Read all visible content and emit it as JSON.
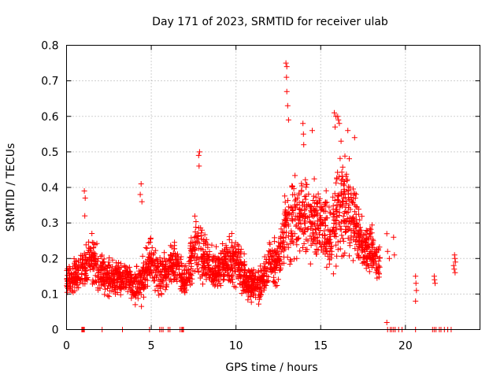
{
  "chart_data": {
    "type": "scatter",
    "title": "Day 171 of 2023, SRMTID for receiver ulab",
    "xlabel": "GPS time / hours",
    "ylabel": "SRMTID / TECUs",
    "xlim": [
      0,
      24.4
    ],
    "ylim": [
      0,
      0.8
    ],
    "xticks": [
      0,
      5,
      10,
      15,
      20
    ],
    "yticks": [
      0,
      0.1,
      0.2,
      0.3,
      0.4,
      0.5,
      0.6,
      0.7,
      0.8
    ],
    "xtick_labels": [
      "0",
      "5",
      "10",
      "15",
      "20"
    ],
    "ytick_labels": [
      "0",
      "0.1",
      "0.2",
      "0.3",
      "0.4",
      "0.5",
      "0.6",
      "0.7",
      "0.8"
    ],
    "grid": true,
    "marker": "+",
    "color": "#ff0000",
    "series": [
      {
        "name": "SRMTID",
        "profile": {
          "hours": [
            0.0,
            0.5,
            1.0,
            1.5,
            2.0,
            2.5,
            3.0,
            3.5,
            4.0,
            4.5,
            5.0,
            5.5,
            6.0,
            6.5,
            7.0,
            7.5,
            8.0,
            8.5,
            9.0,
            9.5,
            10.0,
            10.5,
            11.0,
            11.5,
            12.0,
            12.5,
            13.0,
            13.5,
            14.0,
            14.5,
            15.0,
            15.5,
            16.0,
            16.5,
            17.0,
            17.5,
            18.0,
            18.5
          ],
          "median": [
            0.14,
            0.15,
            0.17,
            0.2,
            0.16,
            0.15,
            0.14,
            0.15,
            0.12,
            0.14,
            0.19,
            0.15,
            0.17,
            0.18,
            0.13,
            0.22,
            0.21,
            0.17,
            0.17,
            0.19,
            0.2,
            0.15,
            0.12,
            0.13,
            0.18,
            0.2,
            0.3,
            0.31,
            0.32,
            0.31,
            0.3,
            0.27,
            0.33,
            0.35,
            0.31,
            0.23,
            0.22,
            0.18
          ],
          "spread": [
            0.04,
            0.04,
            0.06,
            0.06,
            0.05,
            0.05,
            0.04,
            0.04,
            0.04,
            0.06,
            0.06,
            0.05,
            0.05,
            0.05,
            0.04,
            0.08,
            0.07,
            0.05,
            0.05,
            0.05,
            0.06,
            0.05,
            0.04,
            0.04,
            0.06,
            0.07,
            0.1,
            0.1,
            0.1,
            0.1,
            0.09,
            0.09,
            0.12,
            0.12,
            0.1,
            0.07,
            0.06,
            0.05
          ]
        },
        "point_count": 2200,
        "spikes": [
          {
            "x": 1.05,
            "y": 0.39
          },
          {
            "x": 1.1,
            "y": 0.37
          },
          {
            "x": 1.08,
            "y": 0.32
          },
          {
            "x": 4.4,
            "y": 0.41
          },
          {
            "x": 4.35,
            "y": 0.38
          },
          {
            "x": 4.45,
            "y": 0.36
          },
          {
            "x": 7.8,
            "y": 0.49
          },
          {
            "x": 7.85,
            "y": 0.5
          },
          {
            "x": 7.82,
            "y": 0.46
          },
          {
            "x": 12.95,
            "y": 0.75
          },
          {
            "x": 13.0,
            "y": 0.74
          },
          {
            "x": 12.98,
            "y": 0.71
          },
          {
            "x": 13.0,
            "y": 0.67
          },
          {
            "x": 13.05,
            "y": 0.63
          },
          {
            "x": 13.1,
            "y": 0.59
          },
          {
            "x": 13.95,
            "y": 0.58
          },
          {
            "x": 13.98,
            "y": 0.55
          },
          {
            "x": 14.0,
            "y": 0.52
          },
          {
            "x": 14.5,
            "y": 0.56
          },
          {
            "x": 15.8,
            "y": 0.61
          },
          {
            "x": 15.9,
            "y": 0.6
          },
          {
            "x": 16.0,
            "y": 0.6
          },
          {
            "x": 16.05,
            "y": 0.59
          },
          {
            "x": 16.1,
            "y": 0.58
          },
          {
            "x": 15.85,
            "y": 0.57
          },
          {
            "x": 16.6,
            "y": 0.56
          },
          {
            "x": 16.2,
            "y": 0.53
          },
          {
            "x": 17.0,
            "y": 0.54
          },
          {
            "x": 18.9,
            "y": 0.02
          }
        ],
        "late_points": [
          {
            "x": 18.9,
            "y": 0.27
          },
          {
            "x": 18.95,
            "y": 0.22
          },
          {
            "x": 19.05,
            "y": 0.2
          },
          {
            "x": 19.3,
            "y": 0.26
          },
          {
            "x": 19.35,
            "y": 0.21
          },
          {
            "x": 20.6,
            "y": 0.15
          },
          {
            "x": 20.62,
            "y": 0.13
          },
          {
            "x": 20.65,
            "y": 0.11
          },
          {
            "x": 20.6,
            "y": 0.08
          },
          {
            "x": 21.7,
            "y": 0.15
          },
          {
            "x": 21.72,
            "y": 0.14
          },
          {
            "x": 21.75,
            "y": 0.13
          },
          {
            "x": 22.9,
            "y": 0.21
          },
          {
            "x": 22.92,
            "y": 0.2
          },
          {
            "x": 22.95,
            "y": 0.19
          },
          {
            "x": 22.85,
            "y": 0.18
          },
          {
            "x": 22.88,
            "y": 0.17
          },
          {
            "x": 22.93,
            "y": 0.16
          }
        ],
        "zero_hours": [
          0.9,
          0.95,
          1.0,
          1.05,
          2.1,
          3.3,
          4.9,
          5.5,
          5.6,
          5.7,
          6.0,
          6.1,
          6.7,
          6.8,
          6.85,
          6.9,
          18.95,
          19.1,
          19.2,
          19.3,
          19.4,
          19.6,
          19.8,
          20.6,
          21.6,
          21.7,
          21.8,
          22.0,
          22.1,
          22.3,
          22.5,
          22.7
        ]
      }
    ]
  }
}
